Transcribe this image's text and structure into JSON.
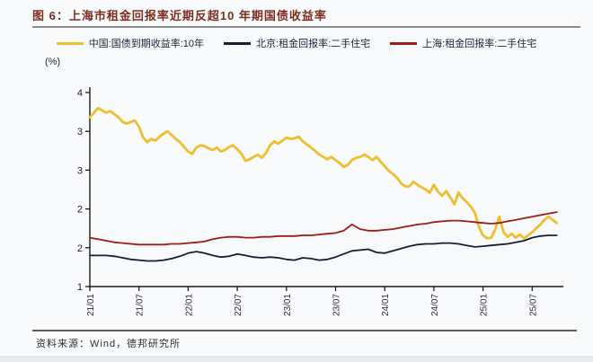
{
  "figure": {
    "title": "图 6：上海市租金回报率近期反超10 年期国债收益率",
    "unit_label": "(%)",
    "source_note": "资料来源：Wind，德邦研究所"
  },
  "theme": {
    "background": "#f9fafb",
    "title_color": "#7e2d1e",
    "axis_color": "#1b1b1b",
    "rule_color": "#8a8a8a"
  },
  "chart_data": {
    "type": "line",
    "title": "上海市租金回报率近期反超10 年期国债收益率",
    "ylabel": "(%)",
    "ylim": [
      1.0,
      3.75
    ],
    "grid": false,
    "legend_position": "top",
    "x_tick_labels": [
      "21/01",
      "21/07",
      "22/01",
      "22/07",
      "23/01",
      "23/07",
      "24/01",
      "24/07",
      "25/01",
      "25/07"
    ],
    "y_ticks": [
      {
        "value": 3.5,
        "label": "4"
      },
      {
        "value": 3.0,
        "label": "3"
      },
      {
        "value": 2.5,
        "label": "3"
      },
      {
        "value": 2.0,
        "label": "2"
      },
      {
        "value": 1.5,
        "label": "2"
      },
      {
        "value": 1.0,
        "label": "1"
      }
    ],
    "x_range_months": [
      "2021-01",
      "2025-10"
    ],
    "series": [
      {
        "key": "china-10y-bond-yield",
        "name": "中国:国债到期收益率:10年",
        "color": "#edbf2e",
        "width": 2.8,
        "step_months": 0.5,
        "values": [
          3.18,
          3.24,
          3.3,
          3.27,
          3.24,
          3.26,
          3.22,
          3.18,
          3.12,
          3.1,
          3.12,
          3.14,
          3.06,
          2.92,
          2.86,
          2.9,
          2.88,
          2.93,
          2.97,
          3.0,
          2.95,
          2.9,
          2.86,
          2.8,
          2.74,
          2.71,
          2.79,
          2.82,
          2.81,
          2.78,
          2.76,
          2.79,
          2.74,
          2.76,
          2.8,
          2.82,
          2.77,
          2.71,
          2.62,
          2.64,
          2.67,
          2.7,
          2.66,
          2.72,
          2.82,
          2.87,
          2.84,
          2.88,
          2.92,
          2.9,
          2.91,
          2.93,
          2.87,
          2.83,
          2.79,
          2.75,
          2.7,
          2.67,
          2.64,
          2.67,
          2.63,
          2.59,
          2.54,
          2.57,
          2.63,
          2.66,
          2.67,
          2.7,
          2.67,
          2.63,
          2.67,
          2.61,
          2.55,
          2.49,
          2.45,
          2.4,
          2.33,
          2.29,
          2.29,
          2.35,
          2.31,
          2.28,
          2.25,
          2.21,
          2.31,
          2.22,
          2.17,
          2.23,
          2.15,
          2.06,
          2.21,
          2.14,
          2.09,
          2.03,
          1.95,
          1.77,
          1.66,
          1.62,
          1.63,
          1.74,
          1.9,
          1.7,
          1.64,
          1.68,
          1.63,
          1.67,
          1.62,
          1.66,
          1.7,
          1.75,
          1.8,
          1.86,
          1.9,
          1.86,
          1.82
        ]
      },
      {
        "key": "beijing-rental-yield",
        "name": "北京:租金回报率:二手住宅",
        "color": "#191f33",
        "width": 1.8,
        "step_months": 1,
        "values": [
          1.4,
          1.4,
          1.4,
          1.39,
          1.37,
          1.35,
          1.34,
          1.33,
          1.33,
          1.34,
          1.36,
          1.39,
          1.43,
          1.45,
          1.43,
          1.4,
          1.38,
          1.39,
          1.42,
          1.4,
          1.38,
          1.37,
          1.38,
          1.37,
          1.35,
          1.34,
          1.37,
          1.36,
          1.34,
          1.35,
          1.38,
          1.42,
          1.46,
          1.47,
          1.48,
          1.44,
          1.43,
          1.46,
          1.49,
          1.52,
          1.54,
          1.55,
          1.55,
          1.56,
          1.56,
          1.55,
          1.53,
          1.51,
          1.52,
          1.53,
          1.54,
          1.55,
          1.57,
          1.59,
          1.63,
          1.65,
          1.66,
          1.66
        ]
      },
      {
        "key": "shanghai-rental-yield",
        "name": "上海:租金回报率:二手住宅",
        "color": "#9e1b17",
        "width": 1.8,
        "step_months": 1,
        "values": [
          1.63,
          1.61,
          1.59,
          1.57,
          1.56,
          1.55,
          1.54,
          1.54,
          1.54,
          1.54,
          1.55,
          1.55,
          1.56,
          1.57,
          1.58,
          1.61,
          1.63,
          1.64,
          1.64,
          1.63,
          1.63,
          1.64,
          1.64,
          1.65,
          1.65,
          1.65,
          1.66,
          1.66,
          1.67,
          1.68,
          1.69,
          1.72,
          1.8,
          1.74,
          1.72,
          1.72,
          1.73,
          1.74,
          1.76,
          1.78,
          1.8,
          1.81,
          1.83,
          1.84,
          1.85,
          1.85,
          1.84,
          1.83,
          1.82,
          1.81,
          1.82,
          1.84,
          1.86,
          1.88,
          1.9,
          1.92,
          1.94,
          1.96
        ]
      }
    ]
  }
}
